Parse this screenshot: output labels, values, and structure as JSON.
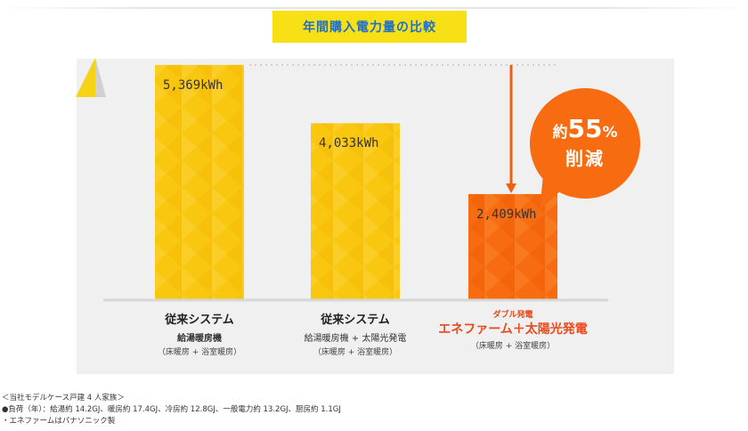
{
  "title": "年間購入電力量の比較",
  "chart_data": {
    "type": "bar",
    "title": "年間購入電力量の比較",
    "unit": "kWh",
    "ylim": [
      0,
      6000
    ],
    "values": [
      5369,
      4033,
      2409
    ],
    "value_labels": [
      "5,369kWh",
      "4,033kWh",
      "2,409kWh"
    ],
    "categories": [
      {
        "sub_top": "",
        "main": "従来システム",
        "system": "給湯暖房機",
        "paren": "（床暖房 + 浴室暖房）"
      },
      {
        "sub_top": "",
        "main": "従来システム",
        "system": "給湯暖房機 + 太陽光発電",
        "paren": "（床暖房 + 浴室暖房）"
      },
      {
        "sub_top": "ダブル発電",
        "main": "エネファーム＋太陽光発電",
        "system": "",
        "paren": "（床暖房 + 浴室暖房）"
      }
    ],
    "colors": [
      "#f9c710",
      "#f9c710",
      "#f76c10"
    ],
    "annotation": {
      "prefix": "約",
      "number": "55",
      "percent": "%",
      "line2": "削減"
    }
  },
  "notes": [
    "＜当社モデルケース戸建 4 人家族＞",
    "●負荷（年）：給湯約 14.2GJ、暖房約 17.4GJ、冷房約 12.8GJ、一般電力約 13.2GJ、厨房約 1.1GJ",
    "・エネファームはパナソニック製"
  ]
}
